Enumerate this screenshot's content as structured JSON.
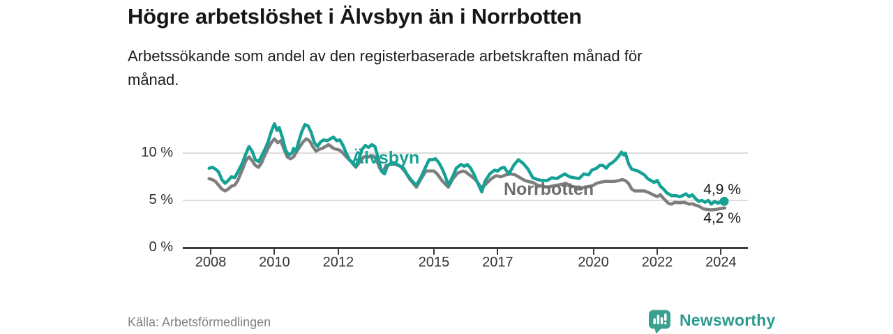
{
  "header": {
    "title": "Högre arbetslöshet i Älvsbyn än i Norrbotten",
    "subtitle": "Arbetssökande som andel av den registerbaserade arbetskraften månad för\nmånad."
  },
  "footer": {
    "source": "Källa: Arbetsförmedlingen",
    "brand_name": "Newsworthy",
    "brand_color": "#2a9a8e"
  },
  "chart_data": {
    "type": "line",
    "title": "Högre arbetslöshet i Älvsbyn än i Norrbotten",
    "ylabel": "",
    "xlabel": "",
    "grid": "horizontal",
    "legend_position": "inline-labels",
    "x_axis": {
      "range": [
        2007.6,
        2024.95
      ],
      "ticks": [
        {
          "year": 2008,
          "label": "2008"
        },
        {
          "year": 2010,
          "label": "2010"
        },
        {
          "year": 2012,
          "label": "2012"
        },
        {
          "year": 2015,
          "label": "2015"
        },
        {
          "year": 2017,
          "label": "2017"
        },
        {
          "year": 2020,
          "label": "2020"
        },
        {
          "year": 2022,
          "label": "2022"
        },
        {
          "year": 2024,
          "label": "2024"
        }
      ]
    },
    "y_axis": {
      "range": [
        0,
        13.5
      ],
      "unit": "%",
      "ticks": [
        {
          "value": 0,
          "label": "0 %"
        },
        {
          "value": 5,
          "label": "5 %"
        },
        {
          "value": 10,
          "label": "10 %"
        }
      ]
    },
    "series": [
      {
        "name": "Älvsbyn",
        "color": "#16a195",
        "label_color": "#16a195",
        "end_label": "4,9 %",
        "end_value": 4.9,
        "end_dot": true,
        "points": [
          [
            2007.95,
            8.4
          ],
          [
            2008.05,
            8.5
          ],
          [
            2008.15,
            8.3
          ],
          [
            2008.25,
            8.0
          ],
          [
            2008.35,
            7.2
          ],
          [
            2008.45,
            6.8
          ],
          [
            2008.55,
            7.1
          ],
          [
            2008.65,
            7.5
          ],
          [
            2008.75,
            7.4
          ],
          [
            2008.85,
            8.0
          ],
          [
            2009.0,
            9.0
          ],
          [
            2009.1,
            9.9
          ],
          [
            2009.2,
            10.7
          ],
          [
            2009.3,
            10.2
          ],
          [
            2009.4,
            9.3
          ],
          [
            2009.5,
            9.1
          ],
          [
            2009.6,
            9.7
          ],
          [
            2009.7,
            10.4
          ],
          [
            2009.8,
            11.2
          ],
          [
            2009.9,
            12.3
          ],
          [
            2010.0,
            13.1
          ],
          [
            2010.08,
            12.4
          ],
          [
            2010.15,
            12.7
          ],
          [
            2010.25,
            11.6
          ],
          [
            2010.35,
            10.3
          ],
          [
            2010.45,
            9.8
          ],
          [
            2010.55,
            10.0
          ],
          [
            2010.6,
            10.5
          ],
          [
            2010.68,
            10.2
          ],
          [
            2010.75,
            11.1
          ],
          [
            2010.85,
            12.2
          ],
          [
            2010.95,
            13.0
          ],
          [
            2011.05,
            12.9
          ],
          [
            2011.15,
            12.2
          ],
          [
            2011.25,
            11.1
          ],
          [
            2011.35,
            10.7
          ],
          [
            2011.45,
            11.2
          ],
          [
            2011.55,
            11.4
          ],
          [
            2011.65,
            11.3
          ],
          [
            2011.75,
            11.5
          ],
          [
            2011.85,
            11.7
          ],
          [
            2011.95,
            11.3
          ],
          [
            2012.05,
            11.4
          ],
          [
            2012.15,
            10.8
          ],
          [
            2012.25,
            10.0
          ],
          [
            2012.35,
            9.3
          ],
          [
            2012.45,
            9.0
          ],
          [
            2012.55,
            8.6
          ],
          [
            2012.65,
            9.4
          ],
          [
            2012.75,
            10.4
          ],
          [
            2012.85,
            10.8
          ],
          [
            2012.95,
            10.6
          ],
          [
            2013.05,
            10.9
          ],
          [
            2013.15,
            10.7
          ],
          [
            2013.25,
            9.5
          ],
          [
            2013.35,
            8.1
          ],
          [
            2013.45,
            7.8
          ],
          [
            2013.55,
            8.7
          ],
          [
            2013.65,
            8.9
          ],
          [
            2013.75,
            9.0
          ],
          [
            2013.85,
            8.8
          ],
          [
            2013.95,
            8.6
          ],
          [
            2014.05,
            8.4
          ],
          [
            2014.15,
            7.8
          ],
          [
            2014.3,
            7.1
          ],
          [
            2014.45,
            6.6
          ],
          [
            2014.6,
            7.5
          ],
          [
            2014.75,
            8.6
          ],
          [
            2014.85,
            9.3
          ],
          [
            2014.95,
            9.3
          ],
          [
            2015.05,
            9.4
          ],
          [
            2015.15,
            9.0
          ],
          [
            2015.25,
            8.4
          ],
          [
            2015.35,
            7.6
          ],
          [
            2015.45,
            6.6
          ],
          [
            2015.6,
            7.6
          ],
          [
            2015.7,
            8.4
          ],
          [
            2015.85,
            8.8
          ],
          [
            2015.95,
            8.6
          ],
          [
            2016.05,
            8.8
          ],
          [
            2016.15,
            8.4
          ],
          [
            2016.25,
            7.8
          ],
          [
            2016.35,
            7.0
          ],
          [
            2016.5,
            5.9
          ],
          [
            2016.6,
            7.0
          ],
          [
            2016.75,
            7.8
          ],
          [
            2016.9,
            8.2
          ],
          [
            2017.0,
            8.1
          ],
          [
            2017.1,
            8.4
          ],
          [
            2017.2,
            8.5
          ],
          [
            2017.35,
            7.8
          ],
          [
            2017.5,
            8.7
          ],
          [
            2017.65,
            9.3
          ],
          [
            2017.8,
            8.9
          ],
          [
            2017.95,
            8.3
          ],
          [
            2018.1,
            7.4
          ],
          [
            2018.25,
            7.2
          ],
          [
            2018.4,
            7.1
          ],
          [
            2018.55,
            7.1
          ],
          [
            2018.7,
            7.4
          ],
          [
            2018.85,
            7.3
          ],
          [
            2019.0,
            7.6
          ],
          [
            2019.1,
            7.8
          ],
          [
            2019.25,
            7.5
          ],
          [
            2019.4,
            7.4
          ],
          [
            2019.55,
            7.3
          ],
          [
            2019.7,
            7.8
          ],
          [
            2019.85,
            7.7
          ],
          [
            2019.95,
            8.2
          ],
          [
            2020.1,
            8.4
          ],
          [
            2020.2,
            8.7
          ],
          [
            2020.3,
            8.7
          ],
          [
            2020.4,
            8.4
          ],
          [
            2020.5,
            8.8
          ],
          [
            2020.6,
            9.0
          ],
          [
            2020.7,
            9.3
          ],
          [
            2020.8,
            9.7
          ],
          [
            2020.88,
            10.1
          ],
          [
            2020.95,
            9.8
          ],
          [
            2021.0,
            10.0
          ],
          [
            2021.1,
            8.9
          ],
          [
            2021.2,
            8.3
          ],
          [
            2021.3,
            8.2
          ],
          [
            2021.4,
            8.1
          ],
          [
            2021.5,
            7.9
          ],
          [
            2021.6,
            7.7
          ],
          [
            2021.7,
            7.3
          ],
          [
            2021.8,
            7.1
          ],
          [
            2021.9,
            6.9
          ],
          [
            2022.0,
            7.1
          ],
          [
            2022.1,
            6.5
          ],
          [
            2022.2,
            6.2
          ],
          [
            2022.3,
            5.8
          ],
          [
            2022.45,
            5.5
          ],
          [
            2022.6,
            5.5
          ],
          [
            2022.7,
            5.4
          ],
          [
            2022.8,
            5.5
          ],
          [
            2022.9,
            5.7
          ],
          [
            2023.0,
            5.4
          ],
          [
            2023.1,
            5.6
          ],
          [
            2023.2,
            5.2
          ],
          [
            2023.3,
            4.9
          ],
          [
            2023.4,
            5.0
          ],
          [
            2023.5,
            4.8
          ],
          [
            2023.6,
            5.0
          ],
          [
            2023.7,
            4.6
          ],
          [
            2023.8,
            4.9
          ],
          [
            2023.9,
            4.7
          ],
          [
            2024.0,
            4.9
          ],
          [
            2024.1,
            4.9
          ]
        ]
      },
      {
        "name": "Norrbotten",
        "color": "#7e7e7e",
        "label_color": "#6e6e6e",
        "end_label": "4,2 %",
        "end_value": 4.2,
        "end_dot": false,
        "points": [
          [
            2007.95,
            7.3
          ],
          [
            2008.05,
            7.2
          ],
          [
            2008.15,
            7.0
          ],
          [
            2008.25,
            6.6
          ],
          [
            2008.35,
            6.2
          ],
          [
            2008.45,
            6.0
          ],
          [
            2008.55,
            6.2
          ],
          [
            2008.65,
            6.5
          ],
          [
            2008.75,
            6.6
          ],
          [
            2008.85,
            7.1
          ],
          [
            2009.0,
            8.3
          ],
          [
            2009.1,
            9.2
          ],
          [
            2009.2,
            9.6
          ],
          [
            2009.3,
            9.2
          ],
          [
            2009.4,
            8.7
          ],
          [
            2009.5,
            8.5
          ],
          [
            2009.6,
            9.0
          ],
          [
            2009.7,
            9.8
          ],
          [
            2009.8,
            10.5
          ],
          [
            2009.9,
            11.1
          ],
          [
            2010.0,
            11.5
          ],
          [
            2010.1,
            11.1
          ],
          [
            2010.2,
            11.3
          ],
          [
            2010.3,
            10.4
          ],
          [
            2010.4,
            9.6
          ],
          [
            2010.5,
            9.4
          ],
          [
            2010.6,
            9.6
          ],
          [
            2010.7,
            10.2
          ],
          [
            2010.8,
            10.7
          ],
          [
            2010.9,
            11.2
          ],
          [
            2011.0,
            11.5
          ],
          [
            2011.1,
            11.3
          ],
          [
            2011.2,
            10.7
          ],
          [
            2011.3,
            10.2
          ],
          [
            2011.4,
            10.4
          ],
          [
            2011.5,
            10.5
          ],
          [
            2011.6,
            10.7
          ],
          [
            2011.7,
            10.9
          ],
          [
            2011.85,
            10.5
          ],
          [
            2011.95,
            10.4
          ],
          [
            2012.05,
            10.3
          ],
          [
            2012.15,
            10.0
          ],
          [
            2012.25,
            9.6
          ],
          [
            2012.4,
            9.1
          ],
          [
            2012.55,
            8.5
          ],
          [
            2012.7,
            9.2
          ],
          [
            2012.8,
            9.6
          ],
          [
            2012.95,
            9.6
          ],
          [
            2013.1,
            9.7
          ],
          [
            2013.2,
            9.3
          ],
          [
            2013.3,
            8.4
          ],
          [
            2013.4,
            8.0
          ],
          [
            2013.5,
            8.7
          ],
          [
            2013.65,
            8.8
          ],
          [
            2013.8,
            8.8
          ],
          [
            2013.95,
            8.6
          ],
          [
            2014.1,
            8.0
          ],
          [
            2014.25,
            7.2
          ],
          [
            2014.45,
            6.4
          ],
          [
            2014.6,
            7.3
          ],
          [
            2014.75,
            8.1
          ],
          [
            2014.9,
            8.1
          ],
          [
            2015.0,
            8.1
          ],
          [
            2015.1,
            7.8
          ],
          [
            2015.25,
            7.1
          ],
          [
            2015.45,
            6.4
          ],
          [
            2015.6,
            7.3
          ],
          [
            2015.75,
            7.9
          ],
          [
            2015.9,
            8.1
          ],
          [
            2016.0,
            8.0
          ],
          [
            2016.15,
            7.6
          ],
          [
            2016.3,
            7.2
          ],
          [
            2016.5,
            6.3
          ],
          [
            2016.65,
            6.8
          ],
          [
            2016.8,
            7.3
          ],
          [
            2016.95,
            7.6
          ],
          [
            2017.1,
            7.5
          ],
          [
            2017.25,
            7.7
          ],
          [
            2017.4,
            7.8
          ],
          [
            2017.55,
            7.7
          ],
          [
            2017.7,
            7.4
          ],
          [
            2017.85,
            7.1
          ],
          [
            2017.95,
            7.0
          ],
          [
            2018.1,
            6.9
          ],
          [
            2018.25,
            6.6
          ],
          [
            2018.4,
            6.5
          ],
          [
            2018.55,
            6.4
          ],
          [
            2018.7,
            6.5
          ],
          [
            2018.85,
            6.6
          ],
          [
            2019.0,
            6.7
          ],
          [
            2019.15,
            6.8
          ],
          [
            2019.3,
            6.5
          ],
          [
            2019.45,
            6.4
          ],
          [
            2019.6,
            6.3
          ],
          [
            2019.75,
            6.4
          ],
          [
            2019.9,
            6.5
          ],
          [
            2020.0,
            6.6
          ],
          [
            2020.1,
            6.8
          ],
          [
            2020.2,
            6.9
          ],
          [
            2020.35,
            7.0
          ],
          [
            2020.5,
            7.0
          ],
          [
            2020.65,
            7.0
          ],
          [
            2020.8,
            7.1
          ],
          [
            2020.9,
            7.2
          ],
          [
            2021.0,
            7.1
          ],
          [
            2021.1,
            6.8
          ],
          [
            2021.2,
            6.2
          ],
          [
            2021.3,
            6.0
          ],
          [
            2021.45,
            6.0
          ],
          [
            2021.6,
            6.0
          ],
          [
            2021.75,
            5.8
          ],
          [
            2021.9,
            5.55
          ],
          [
            2022.0,
            5.4
          ],
          [
            2022.1,
            5.6
          ],
          [
            2022.2,
            5.2
          ],
          [
            2022.35,
            4.7
          ],
          [
            2022.45,
            4.6
          ],
          [
            2022.55,
            4.8
          ],
          [
            2022.7,
            4.75
          ],
          [
            2022.85,
            4.8
          ],
          [
            2023.0,
            4.6
          ],
          [
            2023.1,
            4.65
          ],
          [
            2023.2,
            4.5
          ],
          [
            2023.3,
            4.4
          ],
          [
            2023.45,
            4.1
          ],
          [
            2023.55,
            4.05
          ],
          [
            2023.7,
            4.0
          ],
          [
            2023.85,
            4.05
          ],
          [
            2024.0,
            4.15
          ],
          [
            2024.12,
            4.2
          ]
        ]
      }
    ]
  }
}
